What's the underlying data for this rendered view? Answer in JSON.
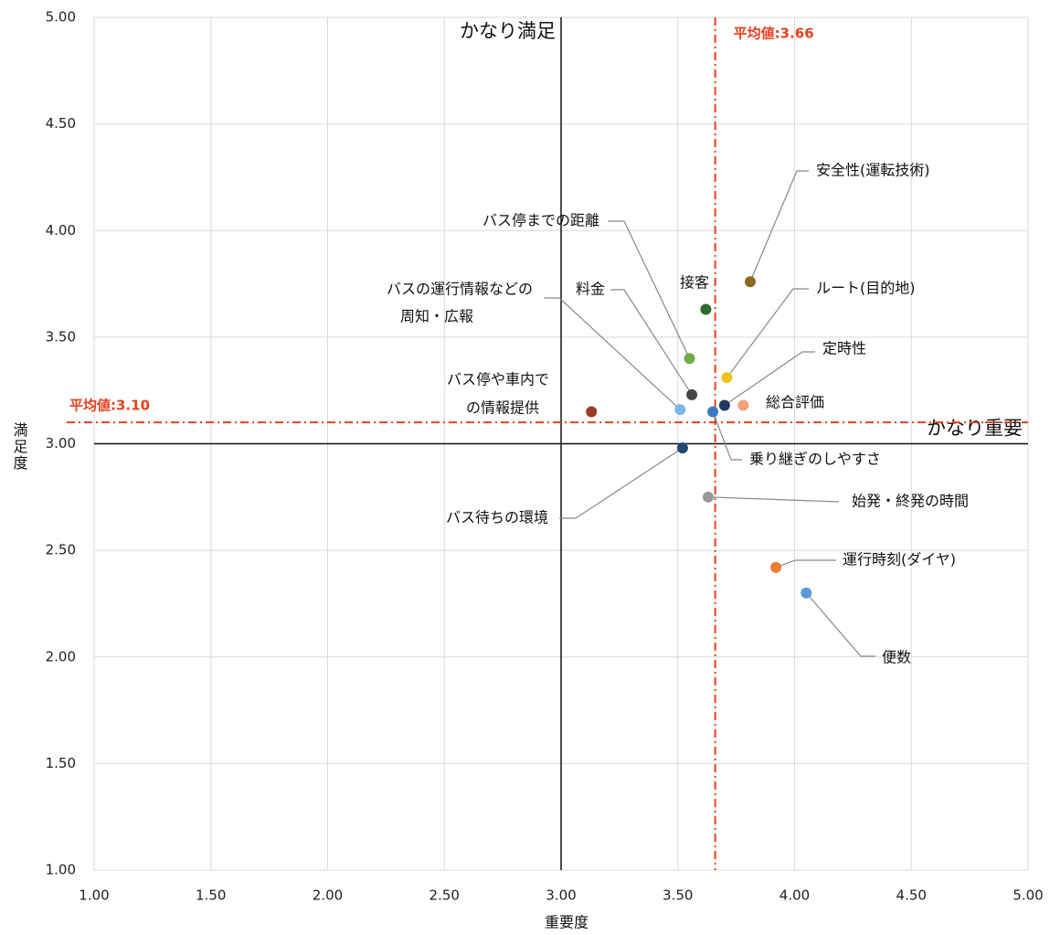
{
  "chart_data": {
    "type": "scatter",
    "x_label": "重要度",
    "y_label": "満足度",
    "xlim": [
      1,
      5
    ],
    "ylim": [
      1,
      5
    ],
    "xticks": [
      {
        "value": 1,
        "label": "1.00"
      },
      {
        "value": 1.5,
        "label": "1.50"
      },
      {
        "value": 2,
        "label": "2.00"
      },
      {
        "value": 2.5,
        "label": "2.50"
      },
      {
        "value": 3,
        "label": "3.00"
      },
      {
        "value": 3.5,
        "label": "3.50"
      },
      {
        "value": 4,
        "label": "4.00"
      },
      {
        "value": 4.5,
        "label": "4.50"
      },
      {
        "value": 5,
        "label": "5.00"
      }
    ],
    "yticks": [
      {
        "value": 1,
        "label": "1.00"
      },
      {
        "value": 1.5,
        "label": "1.50"
      },
      {
        "value": 2,
        "label": "2.00"
      },
      {
        "value": 2.5,
        "label": "2.50"
      },
      {
        "value": 3,
        "label": "3.00"
      },
      {
        "value": 3.5,
        "label": "3.50"
      },
      {
        "value": 4,
        "label": "4.00"
      },
      {
        "value": 4.5,
        "label": "4.50"
      },
      {
        "value": 5,
        "label": "5.00"
      }
    ],
    "grid": true,
    "x_reference": {
      "value": 3,
      "label": "かなり満足"
    },
    "y_reference": {
      "value": 3,
      "label": "かなり重要"
    },
    "x_average": {
      "value": 3.66,
      "label": "平均値:3.66",
      "color": "#e8401c"
    },
    "y_average": {
      "value": 3.1,
      "label": "平均値:3.10",
      "color": "#e8401c"
    },
    "point_labels": [
      [
        "安全性(運転技術)"
      ],
      [
        "接客"
      ],
      [
        "ルート(目的地)"
      ],
      [
        "定時性"
      ],
      [
        "総合評価"
      ],
      [
        "バス停までの距離"
      ],
      [
        "料金"
      ],
      [
        "バスの運行情報などの",
        "周知・広報"
      ],
      [
        "バス停や車内で",
        "の情報提供"
      ],
      [
        "乗り継ぎのしやすさ"
      ],
      [
        "バス待ちの環境"
      ],
      [
        "始発・終発の時間"
      ],
      [
        "運行時刻(ダイヤ)"
      ],
      [
        "便数"
      ]
    ],
    "x": [
      3.81,
      3.62,
      3.71,
      3.7,
      3.78,
      3.55,
      3.56,
      3.51,
      3.13,
      3.65,
      3.52,
      3.63,
      3.92,
      4.05
    ],
    "values": [
      3.76,
      3.63,
      3.31,
      3.18,
      3.18,
      3.4,
      3.23,
      3.16,
      3.15,
      3.15,
      2.98,
      2.75,
      2.42,
      2.3
    ],
    "colors": [
      "#8b6a1e",
      "#2e6b2e",
      "#f2c21a",
      "#1f3b66",
      "#f4a07a",
      "#6fae45",
      "#454545",
      "#7ab8e8",
      "#9b3b2a",
      "#3b78c4",
      "#24486e",
      "#999999",
      "#ed7d31",
      "#5b9bd5"
    ]
  }
}
